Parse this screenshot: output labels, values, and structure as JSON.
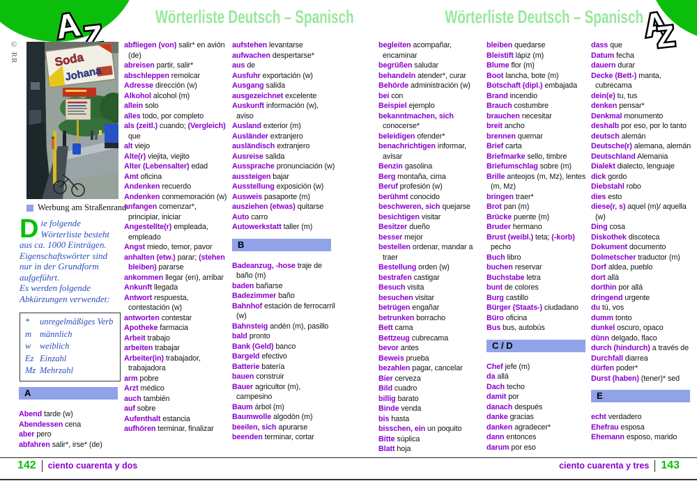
{
  "header": {
    "title": "Wörterliste Deutsch – Spanisch",
    "logo_a": "A",
    "logo_z": "Z"
  },
  "photo": {
    "credit": "© RR",
    "caption": "Werbung am Straßenrand",
    "sign_top": "Soda",
    "sign_bottom": "Johana"
  },
  "intro": {
    "dropcap": "D",
    "para1": "ie folgende Wörterliste besteht aus ca. 1000 Einträgen. Eigenschaftswörter sind nur in der Grundform aufgeführt.",
    "para2": "Es werden folgende Abkürzungen verwendet:"
  },
  "legend": {
    "rows": [
      {
        "abbr": "*",
        "text": "unregelmäßiges Verb"
      },
      {
        "abbr": "m",
        "text": "männlich"
      },
      {
        "abbr": "w",
        "text": "weiblich"
      },
      {
        "abbr": "Ez",
        "text": "Einzahl"
      },
      {
        "abbr": "Mz",
        "text": "Mehrzahl"
      }
    ]
  },
  "columns": [
    {
      "items": [
        {
          "section": "A"
        },
        {
          "de": "Abend",
          "es": "tarde (w)"
        },
        {
          "de": "Abendessen",
          "es": "cena"
        },
        {
          "de": "aber",
          "es": "pero"
        },
        {
          "de": "abfahren",
          "es": "salir*, irse* (de)"
        }
      ]
    },
    {
      "items": [
        {
          "de": "abfliegen (von)",
          "es": "salir* en avión (de)"
        },
        {
          "de": "abreisen",
          "es": "partir, salir*"
        },
        {
          "de": "abschleppen",
          "es": "remolcar"
        },
        {
          "de": "Adresse",
          "es": "dirección (w)"
        },
        {
          "de": "Alkohol",
          "es": "alcohol (m)"
        },
        {
          "de": "allein",
          "es": "solo"
        },
        {
          "de": "alles",
          "es": "todo, por completo"
        },
        {
          "de": "als (zeitl.)",
          "es": "cuando;",
          "de2": "(Vergleich)",
          "es2": "que"
        },
        {
          "de": "alt",
          "es": "viejo"
        },
        {
          "de": "Alte(r)",
          "es": "viejita, viejito"
        },
        {
          "de": "Alter (Lebensalter)",
          "es": "edad"
        },
        {
          "de": "Amt",
          "es": "oficina"
        },
        {
          "de": "Andenken",
          "es": "recuerdo"
        },
        {
          "de": "Andenken",
          "es": "conmemoración (w)"
        },
        {
          "de": "anfangen",
          "es": "comenzar*, principiar, iniciar"
        },
        {
          "de": "Angestellte(r)",
          "es": "empleada, empleado"
        },
        {
          "de": "Angst",
          "es": "miedo, temor, pavor"
        },
        {
          "de": "anhalten (etw.)",
          "es": "parar;",
          "de2": "(stehen bleiben)",
          "es2": "pararse"
        },
        {
          "de": "ankommen",
          "es": "llegar (en), arribar"
        },
        {
          "de": "Ankunft",
          "es": "llegada"
        },
        {
          "de": "Antwort",
          "es": "respuesta, contestación (w)"
        },
        {
          "de": "antworten",
          "es": "contestar"
        },
        {
          "de": "Apotheke",
          "es": "farmacia"
        },
        {
          "de": "Arbeit",
          "es": "trabajo"
        },
        {
          "de": "arbeiten",
          "es": "trabajar"
        },
        {
          "de": "Arbeiter(in)",
          "es": "trabajador, trabajadora"
        },
        {
          "de": "arm",
          "es": "pobre"
        },
        {
          "de": "Arzt",
          "es": "médico"
        },
        {
          "de": "auch",
          "es": "también"
        },
        {
          "de": "auf",
          "es": "sobre"
        },
        {
          "de": "Aufenthalt",
          "es": "estancia"
        },
        {
          "de": "aufhören",
          "es": "terminar, finalizar"
        }
      ]
    },
    {
      "items": [
        {
          "de": "aufstehen",
          "es": "levantarse"
        },
        {
          "de": "aufwachen",
          "es": "despertarse*"
        },
        {
          "de": "aus",
          "es": "de"
        },
        {
          "de": "Ausfuhr",
          "es": "exportación (w)"
        },
        {
          "de": "Ausgang",
          "es": "salida"
        },
        {
          "de": "ausgezeichnet",
          "es": "excelente"
        },
        {
          "de": "Auskunft",
          "es": "información (w), aviso"
        },
        {
          "de": "Ausland",
          "es": "exterior (m)"
        },
        {
          "de": "Ausländer",
          "es": "extranjero"
        },
        {
          "de": "ausländisch",
          "es": "extranjero"
        },
        {
          "de": "Ausreise",
          "es": "salida"
        },
        {
          "de": "Aussprache",
          "es": "pronunciación (w)"
        },
        {
          "de": "aussteigen",
          "es": "bajar"
        },
        {
          "de": "Ausstellung",
          "es": "exposición (w)"
        },
        {
          "de": "Ausweis",
          "es": "pasaporte (m)"
        },
        {
          "de": "ausziehen (etwas)",
          "es": "quitarse"
        },
        {
          "de": "Auto",
          "es": "carro"
        },
        {
          "de": "Autowerkstatt",
          "es": "taller (m)"
        },
        {
          "section": "B"
        },
        {
          "de": "Badeanzug, -hose",
          "es": "traje de baño (m)"
        },
        {
          "de": "baden",
          "es": "bañarse"
        },
        {
          "de": "Badezimmer",
          "es": "baño"
        },
        {
          "de": "Bahnhof",
          "es": "estación de ferrocarril (w)"
        },
        {
          "de": "Bahnsteig",
          "es": "andén (m), pasillo"
        },
        {
          "de": "bald",
          "es": "pronto"
        },
        {
          "de": "Bank (Geld)",
          "es": "banco"
        },
        {
          "de": "Bargeld",
          "es": "efectivo"
        },
        {
          "de": "Batterie",
          "es": "batería"
        },
        {
          "de": "bauen",
          "es": "construir"
        },
        {
          "de": "Bauer",
          "es": "agricultor (m), campesino"
        },
        {
          "de": "Baum",
          "es": "árbol (m)"
        },
        {
          "de": "Baumwolle",
          "es": "algodón (m)"
        },
        {
          "de": "beeilen, sich",
          "es": "apurarse"
        },
        {
          "de": "beenden",
          "es": "terminar, cortar"
        }
      ]
    },
    {
      "items": [
        {
          "de": "begleiten",
          "es": "acompañar, encaminar"
        },
        {
          "de": "begrüßen",
          "es": "saludar"
        },
        {
          "de": "behandeln",
          "es": "atender*, curar"
        },
        {
          "de": "Behörde",
          "es": "administración (w)"
        },
        {
          "de": "bei",
          "es": "con"
        },
        {
          "de": "Beispiel",
          "es": "ejemplo"
        },
        {
          "de": "bekanntmachen, sich",
          "es": "conocerse*"
        },
        {
          "de": "beleidigen",
          "es": "ofender*"
        },
        {
          "de": "benachrichtigen",
          "es": "informar, avisar"
        },
        {
          "de": "Benzin",
          "es": "gasolina"
        },
        {
          "de": "Berg",
          "es": "montaña, cima"
        },
        {
          "de": "Beruf",
          "es": "profesión (w)"
        },
        {
          "de": "berühmt",
          "es": "conocido"
        },
        {
          "de": "beschweren, sich",
          "es": "quejarse"
        },
        {
          "de": "besichtigen",
          "es": "visitar"
        },
        {
          "de": "Besitzer",
          "es": "dueño"
        },
        {
          "de": "besser",
          "es": "mejor"
        },
        {
          "de": "bestellen",
          "es": "ordenar, mandar a traer"
        },
        {
          "de": "Bestellung",
          "es": "orden (w)"
        },
        {
          "de": "bestrafen",
          "es": "castigar"
        },
        {
          "de": "Besuch",
          "es": "visita"
        },
        {
          "de": "besuchen",
          "es": "visitar"
        },
        {
          "de": "betrügen",
          "es": "engañar"
        },
        {
          "de": "betrunken",
          "es": "borracho"
        },
        {
          "de": "Bett",
          "es": "cama"
        },
        {
          "de": "Bettzeug",
          "es": "cubrecama"
        },
        {
          "de": "bevor",
          "es": "antes"
        },
        {
          "de": "Beweis",
          "es": "prueba"
        },
        {
          "de": "bezahlen",
          "es": "pagar, cancelar"
        },
        {
          "de": "Bier",
          "es": "cerveza"
        },
        {
          "de": "Bild",
          "es": "cuadro"
        },
        {
          "de": "billig",
          "es": "barato"
        },
        {
          "de": "Binde",
          "es": "venda"
        },
        {
          "de": "bis",
          "es": "hasta"
        },
        {
          "de": "bisschen, ein",
          "es": "un poquito"
        },
        {
          "de": "Bitte",
          "es": "súplica"
        },
        {
          "de": "Blatt",
          "es": "hoja"
        }
      ]
    },
    {
      "items": [
        {
          "de": "bleiben",
          "es": "quedarse"
        },
        {
          "de": "Bleistift",
          "es": "lápiz (m)"
        },
        {
          "de": "Blume",
          "es": "flor (m)"
        },
        {
          "de": "Boot",
          "es": "lancha, bote (m)"
        },
        {
          "de": "Botschaft (dipl.)",
          "es": "embajada"
        },
        {
          "de": "Brand",
          "es": "incendio"
        },
        {
          "de": "Brauch",
          "es": "costumbre"
        },
        {
          "de": "brauchen",
          "es": "necesitar"
        },
        {
          "de": "breit",
          "es": "ancho"
        },
        {
          "de": "brennen",
          "es": "quemar"
        },
        {
          "de": "Brief",
          "es": "carta"
        },
        {
          "de": "Briefmarke",
          "es": "sello, timbre"
        },
        {
          "de": "Briefumschlag",
          "es": "sobre (m)"
        },
        {
          "de": "Brille",
          "es": "anteojos (m, Mz), lentes (m, Mz)"
        },
        {
          "de": "bringen",
          "es": "traer*"
        },
        {
          "de": "Brot",
          "es": "pan (m)"
        },
        {
          "de": "Brücke",
          "es": "puente (m)"
        },
        {
          "de": "Bruder",
          "es": "hermano"
        },
        {
          "de": "Brust (weibl.)",
          "es": "teta;",
          "de2": "(-korb)",
          "es2": "pecho"
        },
        {
          "de": "Buch",
          "es": "libro"
        },
        {
          "de": "buchen",
          "es": "reservar"
        },
        {
          "de": "Buchstabe",
          "es": "letra"
        },
        {
          "de": "bunt",
          "es": "de colores"
        },
        {
          "de": "Burg",
          "es": "castillo"
        },
        {
          "de": "Bürger (Staats-)",
          "es": "ciudadano"
        },
        {
          "de": "Büro",
          "es": "oficina"
        },
        {
          "de": "Bus",
          "es": "bus, autobús"
        },
        {
          "section": "C / D"
        },
        {
          "de": "Chef",
          "es": "jefe (m)"
        },
        {
          "de": "da",
          "es": "allá"
        },
        {
          "de": "Dach",
          "es": "techo"
        },
        {
          "de": "damit",
          "es": "por"
        },
        {
          "de": "danach",
          "es": "después"
        },
        {
          "de": "danke",
          "es": "gracias"
        },
        {
          "de": "danken",
          "es": "agradecer*"
        },
        {
          "de": "dann",
          "es": "entonces"
        },
        {
          "de": "darum",
          "es": "por eso"
        }
      ]
    },
    {
      "items": [
        {
          "de": "dass",
          "es": "que"
        },
        {
          "de": "Datum",
          "es": "fecha"
        },
        {
          "de": "dauern",
          "es": "durar"
        },
        {
          "de": "Decke (Bett-)",
          "es": "manta, cubrecama"
        },
        {
          "de": "dein(e)",
          "es": "tu, tus"
        },
        {
          "de": "denken",
          "es": "pensar*"
        },
        {
          "de": "Denkmal",
          "es": "monumento"
        },
        {
          "de": "deshalb",
          "es": "por eso, por lo tanto"
        },
        {
          "de": "deutsch",
          "es": "alemán"
        },
        {
          "de": "Deutsche(r)",
          "es": "alemana, alemán"
        },
        {
          "de": "Deutschland",
          "es": "Alemania"
        },
        {
          "de": "Dialekt",
          "es": "dialecto, lenguaje"
        },
        {
          "de": "dick",
          "es": "gordo"
        },
        {
          "de": "Diebstahl",
          "es": "robo"
        },
        {
          "de": "dies",
          "es": "esto"
        },
        {
          "de": "diese(r, s)",
          "es": "aquel (m)/ aquella (w)"
        },
        {
          "de": "Ding",
          "es": "cosa"
        },
        {
          "de": "Diskothek",
          "es": "discoteca"
        },
        {
          "de": "Dokument",
          "es": "documento"
        },
        {
          "de": "Dolmetscher",
          "es": "traductor (m)"
        },
        {
          "de": "Dorf",
          "es": "aldea, pueblo"
        },
        {
          "de": "dort",
          "es": "allá"
        },
        {
          "de": "dorthin",
          "es": "por allá"
        },
        {
          "de": "dringend",
          "es": "urgente"
        },
        {
          "de": "du",
          "es": "tú, vos"
        },
        {
          "de": "dumm",
          "es": "tonto"
        },
        {
          "de": "dunkel",
          "es": "oscuro, opaco"
        },
        {
          "de": "dünn",
          "es": "delgado, flaco"
        },
        {
          "de": "durch (hindurch)",
          "es": "a través de"
        },
        {
          "de": "Durchfall",
          "es": "diarrea"
        },
        {
          "de": "dürfen",
          "es": "poder*"
        },
        {
          "de": "Durst (haben)",
          "es": "(tener)* sed"
        },
        {
          "section": "E"
        },
        {
          "de": "echt",
          "es": "verdadero"
        },
        {
          "de": "Ehefrau",
          "es": "esposa"
        },
        {
          "de": "Ehemann",
          "es": "esposo, marido"
        }
      ]
    }
  ],
  "footer": {
    "left_number": "142",
    "left_text": "ciento cuarenta y dos",
    "right_text": "ciento cuarenta y tres",
    "right_number": "143"
  },
  "colors": {
    "green": "#0bbe0b",
    "light_green": "#98e89c",
    "purple": "#8b00cc",
    "section_blue": "#90a2e8",
    "intro_blue": "#2b4cc0"
  }
}
